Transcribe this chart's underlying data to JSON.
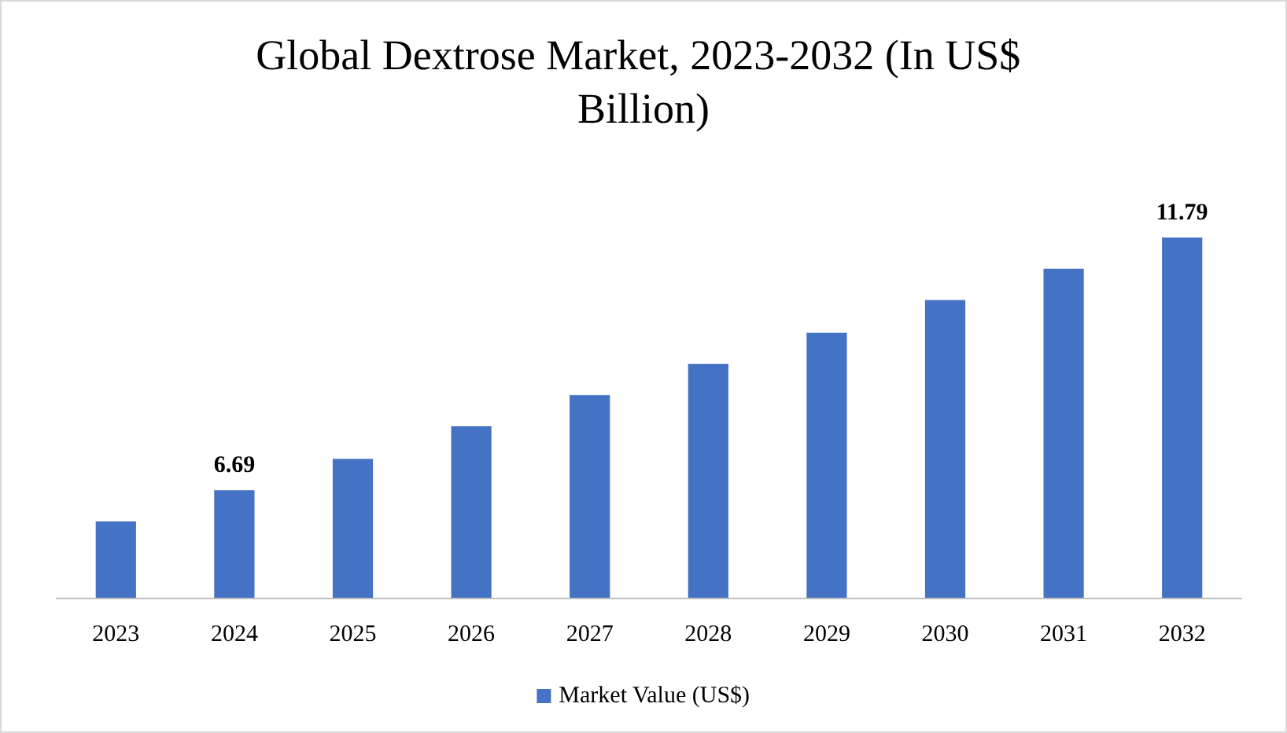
{
  "chart_data": {
    "type": "bar",
    "title": "Global Dextrose Market, 2023-2032 (In US$ Billion)",
    "categories": [
      "2023",
      "2024",
      "2025",
      "2026",
      "2027",
      "2028",
      "2029",
      "2030",
      "2031",
      "2032"
    ],
    "series": [
      {
        "name": "Market Value (US$)",
        "color": "#4472c4",
        "values": [
          6.06,
          6.69,
          7.32,
          7.98,
          8.61,
          9.24,
          9.87,
          10.53,
          11.16,
          11.79
        ],
        "value_labels": [
          null,
          "6.69",
          null,
          null,
          null,
          null,
          null,
          null,
          null,
          "11.79"
        ]
      }
    ],
    "ylim": [
      4.52,
      11.79
    ],
    "tick_labels": "x",
    "grid": false,
    "legend": "bottom"
  }
}
